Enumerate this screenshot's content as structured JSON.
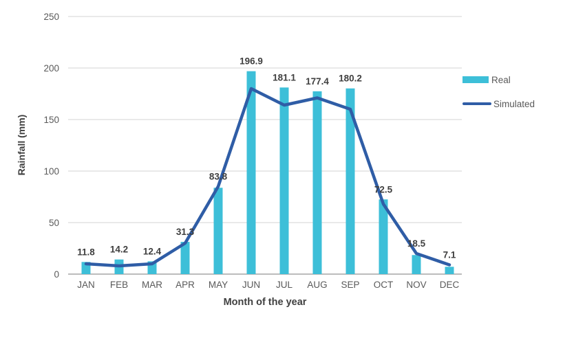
{
  "chart_data": {
    "type": "bar+line",
    "title": "",
    "xlabel": "Month of the year",
    "ylabel": "Rainfall (mm)",
    "ylim": [
      0,
      250
    ],
    "yticks": [
      0,
      50,
      100,
      150,
      200,
      250
    ],
    "grid": "horizontal-only",
    "legend_position": "right",
    "categories": [
      "JAN",
      "FEB",
      "MAR",
      "APR",
      "MAY",
      "JUN",
      "JUL",
      "AUG",
      "SEP",
      "OCT",
      "NOV",
      "DEC"
    ],
    "series": [
      {
        "name": "Real",
        "type": "bar",
        "color": "#3dbfd8",
        "data_labels_shown": true,
        "values": [
          11.8,
          14.2,
          12.4,
          31.3,
          83.8,
          196.9,
          181.1,
          177.4,
          180.2,
          72.5,
          18.5,
          7.1
        ]
      },
      {
        "name": "Simulated",
        "type": "line",
        "color": "#2f5da6",
        "data_labels_shown": false,
        "values": [
          10,
          8,
          10,
          30,
          85,
          180,
          164,
          171,
          160,
          68,
          20,
          9
        ]
      }
    ],
    "style": {
      "grid_color": "#dcdcdc",
      "axis_line_color": "#a6a6a6",
      "tick_label_color": "#595959",
      "data_label_color": "#3f3f3f",
      "background": "#ffffff"
    }
  }
}
